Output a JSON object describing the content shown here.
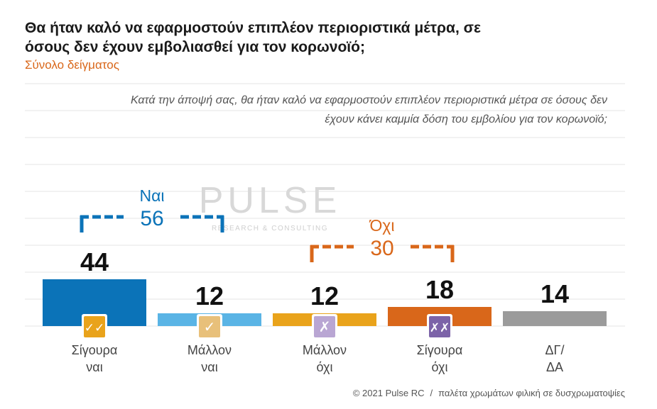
{
  "title": "Θα ήταν καλό να εφαρμοστούν επιπλέον περιοριστικά μέτρα, σε όσους δεν έχουν εμβολιασθεί για τον κορωνοϊό;",
  "subtitle": "Σύνολο δείγματος",
  "question": "Κατά την άποψή σας, θα ήταν καλό να εφαρμοστούν επιπλέον περιοριστικά μέτρα σε όσους δεν έχουν κάνει καμμία δόση του εμβολίου για τον κορωνοϊό;",
  "watermark": {
    "main": "PULSE",
    "sub": "RESEARCH & CONSULTING"
  },
  "footer": {
    "copyright": "© 2021 Pulse RC",
    "separator": "/",
    "note": "παλέτα χρωμάτων φιλική σε δυσχρωματοψίες"
  },
  "colors": {
    "yes_group": "#0b73b8",
    "no_group": "#d9671a",
    "gridline": "#e6e6e6",
    "label_text": "#444444"
  },
  "chart_data": {
    "type": "bar",
    "categories": [
      "Σίγουρα ναι",
      "Μάλλον ναι",
      "Μάλλον όχι",
      "Σίγουρα όχι",
      "ΔΓ/ ΔΑ"
    ],
    "category_lines": [
      [
        "Σίγουρα",
        "ναι"
      ],
      [
        "Μάλλον",
        "ναι"
      ],
      [
        "Μάλλον",
        "όχι"
      ],
      [
        "Σίγουρα",
        "όχι"
      ],
      [
        "ΔΓ/",
        "ΔΑ"
      ]
    ],
    "values": [
      44,
      12,
      12,
      18,
      14
    ],
    "bar_colors": [
      "#0b73b8",
      "#5ab4e5",
      "#e9a31b",
      "#d9671a",
      "#9b9b9b"
    ],
    "icons": [
      {
        "name": "double-check-icon",
        "glyph": "✓✓",
        "color": "#e9a31b"
      },
      {
        "name": "check-icon",
        "glyph": "✓",
        "color": "#e8c07a"
      },
      {
        "name": "cross-icon",
        "glyph": "✗",
        "color": "#b9a6d3"
      },
      {
        "name": "double-cross-icon",
        "glyph": "✗✗",
        "color": "#7c63a8"
      },
      null
    ],
    "groups": [
      {
        "label": "Ναι",
        "value": 56,
        "color": "#0b73b8",
        "from": 0,
        "to": 1
      },
      {
        "label": "Όχι",
        "value": 30,
        "color": "#d9671a",
        "from": 2,
        "to": 3
      }
    ],
    "ylim": [
      0,
      100
    ],
    "grid": true
  }
}
